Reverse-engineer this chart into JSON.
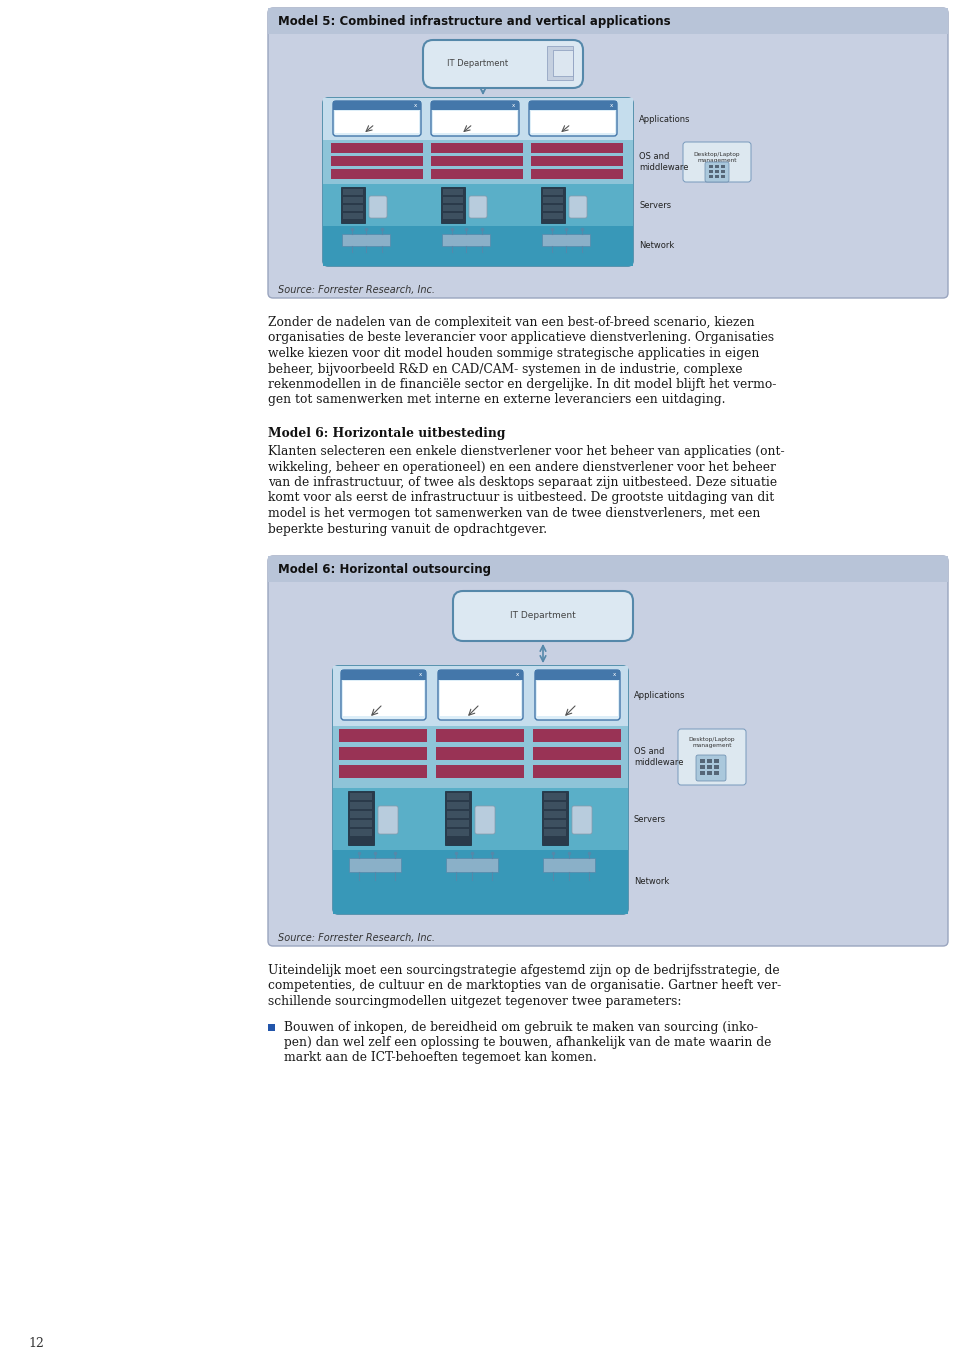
{
  "page_bg": "#ffffff",
  "diagram1_title": "Model 5: Combined infrastructure and vertical applications",
  "diagram2_title": "Model 6: Horizontal outsourcing",
  "source_text": "Source: Forrester Research, Inc.",
  "it_dept_text": "IT Department",
  "app_text": "Applications",
  "os_text": "OS and\nmiddleware",
  "server_text": "Servers",
  "network_text": "Network",
  "desktop_text": "Desktop/Laptop\nmanagement",
  "outer_box_fill": "#c8d0e2",
  "outer_box_edge": "#9aa5bf",
  "inner_bg_fill": "#dce4f0",
  "app_layer": "#c5dded",
  "os_layer": "#8ec4d8",
  "srv_layer": "#5aafc8",
  "net_layer": "#3898b8",
  "it_box_fill": "#dce8f2",
  "it_box_edge": "#5588aa",
  "red_block": "#993355",
  "desk_fill": "#dde8f0",
  "desk_edge": "#7799bb",
  "heading2_text": "Model 6: Horizontale uitbesteding",
  "para1_line1": "Zonder de nadelen van de complexiteit van een best-of-breed scenario, kiezen",
  "para1_line2": "organisaties de beste leverancier voor applicatieve dienstverlening. Organisaties",
  "para1_line3": "welke kiezen voor dit model houden sommige strategische applicaties in eigen",
  "para1_line4": "beheer, bijvoorbeeld R&D en CAD/CAM- systemen in de industrie, complexe",
  "para1_line5": "rekenmodellen in de financiële sector en dergelijke. In dit model blijft het vermo-",
  "para1_line6": "gen tot samenwerken met interne en externe leveranciers een uitdaging.",
  "para2_line1": "Klanten selecteren een enkele dienstverlener voor het beheer van applicaties (ont-",
  "para2_line2": "wikkeling, beheer en operationeel) en een andere dienstverlener voor het beheer",
  "para2_line3": "van de infrastructuur, of twee als desktops separaat zijn uitbesteed. Deze situatie",
  "para2_line4": "komt voor als eerst de infrastructuur is uitbesteed. De grootste uitdaging van dit",
  "para2_line5": "model is het vermogen tot samenwerken van de twee dienstverleners, met een",
  "para2_line6": "beperkte besturing vanuit de opdrachtgever.",
  "para3_line1": "Uiteindelijk moet een sourcingstrategie afgestemd zijn op de bedrijfsstrategie, de",
  "para3_line2": "competenties, de cultuur en de marktopties van de organisatie. Gartner heeft ver-",
  "para3_line3": "schillende sourcingmodellen uitgezet tegenover twee parameters:",
  "bullet1_line1": "Bouwen of inkopen, de bereidheid om gebruik te maken van sourcing (inko-",
  "bullet1_line2": "pen) dan wel zelf een oplossing te bouwen, afhankelijk van de mate waarin de",
  "bullet1_line3": "markt aan de ICT-behoeften tegemoet kan komen.",
  "page_number": "12"
}
